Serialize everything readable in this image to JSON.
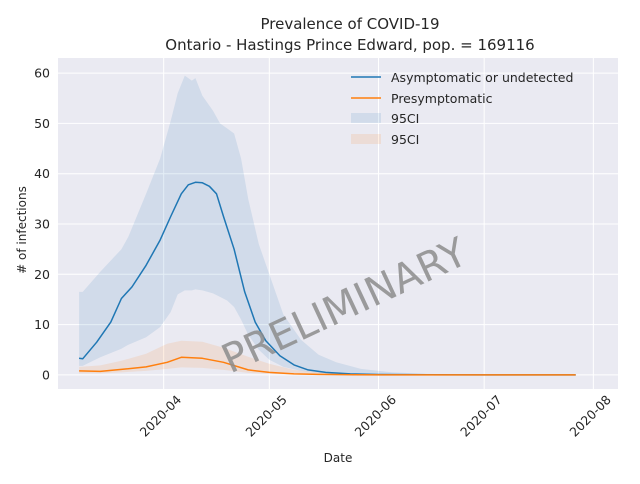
{
  "chart_data": {
    "type": "line",
    "title": "Prevalence of COVID-19",
    "subtitle": "Ontario - Hastings Prince Edward, pop. = 169116",
    "xlabel": "Date",
    "ylabel": "# of infections",
    "watermark": "PRELIMINARY",
    "x_ticks": [
      "2020-04",
      "2020-05",
      "2020-06",
      "2020-07",
      "2020-08"
    ],
    "y_ticks": [
      "0",
      "10",
      "20",
      "30",
      "40",
      "50",
      "60"
    ],
    "xlim": [
      "2020-03-02",
      "2020-08-08"
    ],
    "ylim": [
      -2.8,
      63
    ],
    "grid": true,
    "legend_position": "top-right",
    "colors": {
      "background": "#eaeaf2",
      "grid": "#ffffff",
      "asymptomatic": "#1f77b4",
      "presymptomatic": "#ff7f0e",
      "band_asymptomatic": "#1f77b4",
      "band_presymptomatic": "#ff7f0e"
    },
    "series": [
      {
        "name": "Asymptomatic or undetected",
        "x": [
          "2020-03-08",
          "2020-03-09",
          "2020-03-13",
          "2020-03-17",
          "2020-03-20",
          "2020-03-23",
          "2020-03-27",
          "2020-03-31",
          "2020-04-03",
          "2020-04-06",
          "2020-04-08",
          "2020-04-10",
          "2020-04-12",
          "2020-04-14",
          "2020-04-16",
          "2020-04-18",
          "2020-04-21",
          "2020-04-24",
          "2020-04-27",
          "2020-04-30",
          "2020-05-04",
          "2020-05-08",
          "2020-05-12",
          "2020-05-17",
          "2020-05-24",
          "2020-06-01",
          "2020-06-15",
          "2020-07-01",
          "2020-07-27"
        ],
        "y": [
          3.3,
          3.2,
          6.5,
          10.5,
          15.2,
          17.5,
          21.8,
          26.8,
          31.5,
          36.0,
          37.8,
          38.3,
          38.2,
          37.5,
          36.0,
          31.5,
          25.0,
          16.5,
          10.5,
          6.8,
          3.8,
          2.0,
          1.0,
          0.5,
          0.2,
          0.08,
          0.03,
          0.01,
          0.0
        ]
      },
      {
        "name": "Presymptomatic",
        "x": [
          "2020-03-08",
          "2020-03-14",
          "2020-03-20",
          "2020-03-27",
          "2020-04-02",
          "2020-04-06",
          "2020-04-12",
          "2020-04-18",
          "2020-04-25",
          "2020-05-01",
          "2020-05-08",
          "2020-05-15",
          "2020-05-25",
          "2020-06-05",
          "2020-07-27"
        ],
        "y": [
          0.8,
          0.7,
          1.1,
          1.6,
          2.5,
          3.5,
          3.3,
          2.5,
          1.0,
          0.5,
          0.2,
          0.1,
          0.03,
          0.01,
          0.0
        ]
      }
    ],
    "bands": [
      {
        "name": "95CI",
        "x": [
          "2020-03-08",
          "2020-03-09",
          "2020-03-14",
          "2020-03-20",
          "2020-03-22",
          "2020-03-27",
          "2020-03-31",
          "2020-04-03",
          "2020-04-05",
          "2020-04-07",
          "2020-04-09",
          "2020-04-10",
          "2020-04-12",
          "2020-04-15",
          "2020-04-17",
          "2020-04-19",
          "2020-04-21",
          "2020-04-23",
          "2020-04-25",
          "2020-04-28",
          "2020-05-01",
          "2020-05-05",
          "2020-05-10",
          "2020-05-15",
          "2020-05-20",
          "2020-05-27",
          "2020-06-05",
          "2020-06-15",
          "2020-07-01",
          "2020-07-27"
        ],
        "upper": [
          16.5,
          16.5,
          20.5,
          25.0,
          27.5,
          36.0,
          43.0,
          50.5,
          56.0,
          59.5,
          58.5,
          59.0,
          55.5,
          52.5,
          50.0,
          49.0,
          48.0,
          43.0,
          35.0,
          26.0,
          20.0,
          12.0,
          7.0,
          4.0,
          2.5,
          1.2,
          0.5,
          0.2,
          0.05,
          0.01
        ],
        "lower": [
          1.8,
          1.8,
          3.5,
          5.2,
          6.0,
          7.5,
          9.5,
          12.5,
          16.0,
          16.8,
          16.8,
          17.0,
          16.8,
          16.2,
          15.5,
          14.8,
          13.5,
          11.0,
          8.0,
          5.0,
          3.0,
          1.6,
          0.8,
          0.4,
          0.2,
          0.1,
          0.03,
          0.01,
          0.0,
          0.0
        ]
      },
      {
        "name": "95CI",
        "x": [
          "2020-03-08",
          "2020-03-14",
          "2020-03-20",
          "2020-03-27",
          "2020-04-02",
          "2020-04-06",
          "2020-04-12",
          "2020-04-18",
          "2020-04-25",
          "2020-05-01",
          "2020-05-08",
          "2020-05-15",
          "2020-05-25",
          "2020-06-05",
          "2020-07-27"
        ],
        "upper": [
          1.6,
          1.9,
          2.8,
          4.2,
          6.2,
          6.8,
          6.6,
          5.4,
          3.6,
          2.2,
          1.0,
          0.5,
          0.15,
          0.05,
          0.0
        ],
        "lower": [
          0.3,
          0.3,
          0.5,
          0.8,
          1.2,
          1.5,
          1.4,
          1.0,
          0.4,
          0.2,
          0.08,
          0.03,
          0.01,
          0.0,
          0.0
        ]
      }
    ]
  }
}
